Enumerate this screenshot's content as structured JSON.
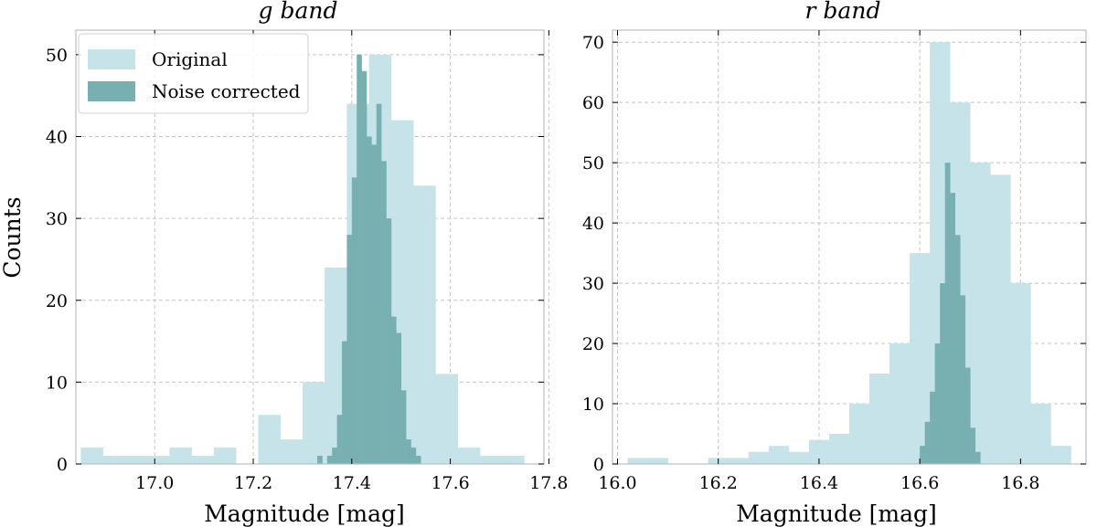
{
  "ylabel_shared": "Counts",
  "colors": {
    "original": "#c5e3e9",
    "noise_corrected": "#78b0b1"
  },
  "chart_data": [
    {
      "type": "histogram",
      "title": "g band",
      "xlabel": "Magnitude [mag]",
      "ylabel": "Counts",
      "xlim": [
        16.84,
        17.79
      ],
      "ylim": [
        0,
        53
      ],
      "xticks": [
        17.0,
        17.2,
        17.4,
        17.6,
        17.8
      ],
      "xtick_labels": [
        "17.0",
        "17.2",
        "17.4",
        "17.6",
        "17.8"
      ],
      "yticks": [
        0,
        10,
        20,
        30,
        40,
        50
      ],
      "ytick_labels": [
        "0",
        "10",
        "20",
        "30",
        "40",
        "50"
      ],
      "grid": true,
      "legend": {
        "position": "top-left",
        "entries": [
          "Original",
          "Noise corrected"
        ]
      },
      "series": [
        {
          "name": "Original",
          "bin_edges": [
            16.85,
            16.895,
            16.94,
            16.985,
            17.03,
            17.075,
            17.12,
            17.165,
            17.21,
            17.255,
            17.3,
            17.345,
            17.39,
            17.435,
            17.48,
            17.525,
            17.57,
            17.615,
            17.66,
            17.705,
            17.75,
            17.795
          ],
          "counts": [
            2,
            1,
            1,
            1,
            2,
            1,
            2,
            0,
            6,
            3,
            10,
            24,
            44,
            50,
            42,
            34,
            11,
            2,
            1,
            1,
            0
          ]
        },
        {
          "name": "Noise corrected",
          "bin_edges": [
            17.33,
            17.34,
            17.35,
            17.36,
            17.37,
            17.38,
            17.39,
            17.4,
            17.41,
            17.42,
            17.43,
            17.44,
            17.45,
            17.46,
            17.47,
            17.48,
            17.49,
            17.5,
            17.51,
            17.52,
            17.53,
            17.54,
            17.55
          ],
          "counts": [
            1,
            0,
            1,
            2,
            6,
            15,
            28,
            35,
            50,
            48,
            40,
            39,
            44,
            37,
            30,
            18,
            16,
            9,
            3,
            2,
            1,
            0
          ]
        }
      ]
    },
    {
      "type": "histogram",
      "title": "r band",
      "xlabel": "Magnitude [mag]",
      "ylabel": "",
      "xlim": [
        15.99,
        16.93
      ],
      "ylim": [
        0,
        72
      ],
      "xticks": [
        16.0,
        16.2,
        16.4,
        16.6,
        16.8
      ],
      "xtick_labels": [
        "16.0",
        "16.2",
        "16.4",
        "16.6",
        "16.8"
      ],
      "yticks": [
        0,
        10,
        20,
        30,
        40,
        50,
        60,
        70
      ],
      "ytick_labels": [
        "0",
        "10",
        "20",
        "30",
        "40",
        "50",
        "60",
        "70"
      ],
      "grid": true,
      "series": [
        {
          "name": "Original",
          "bin_edges": [
            16.02,
            16.06,
            16.1,
            16.14,
            16.18,
            16.22,
            16.26,
            16.3,
            16.34,
            16.38,
            16.42,
            16.46,
            16.5,
            16.54,
            16.58,
            16.62,
            16.66,
            16.7,
            16.74,
            16.78,
            16.82,
            16.86,
            16.9
          ],
          "counts": [
            1,
            1,
            0,
            0,
            1,
            1,
            2,
            3,
            2,
            4,
            5,
            10,
            15,
            20,
            35,
            70,
            60,
            50,
            48,
            30,
            10,
            3
          ]
        },
        {
          "name": "Noise corrected",
          "bin_edges": [
            16.6,
            16.61,
            16.62,
            16.63,
            16.64,
            16.65,
            16.66,
            16.67,
            16.68,
            16.69,
            16.7,
            16.71,
            16.72
          ],
          "counts": [
            3,
            7,
            12,
            20,
            30,
            50,
            45,
            38,
            28,
            16,
            6,
            2
          ]
        }
      ]
    }
  ]
}
